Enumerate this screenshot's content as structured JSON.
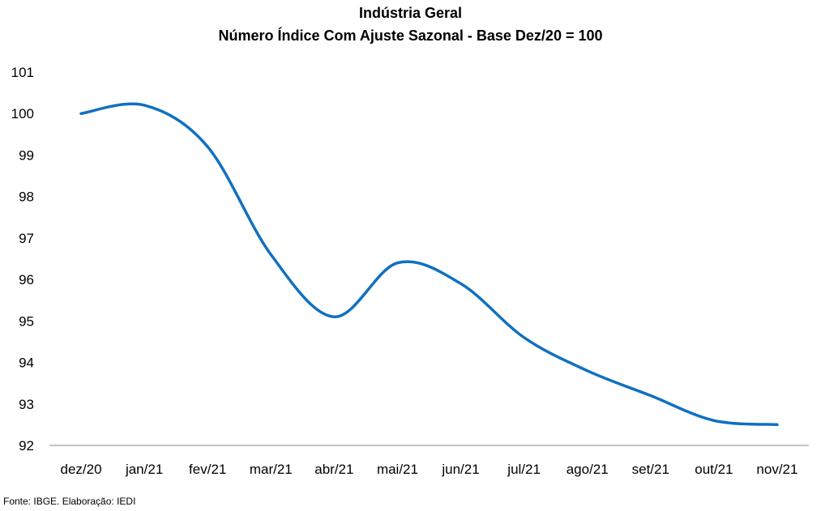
{
  "chart_data": {
    "type": "line",
    "title": "Indústria Geral",
    "subtitle": "Número Índice Com Ajuste Sazonal - Base Dez/20 = 100",
    "categories": [
      "dez/20",
      "jan/21",
      "fev/21",
      "mar/21",
      "abr/21",
      "mai/21",
      "jun/21",
      "jul/21",
      "ago/21",
      "set/21",
      "out/21",
      "nov/21"
    ],
    "series": [
      {
        "values": [
          100.0,
          100.2,
          99.2,
          96.6,
          95.1,
          96.4,
          95.9,
          94.6,
          93.8,
          93.2,
          92.6,
          92.5
        ]
      }
    ],
    "ylim": [
      92,
      101
    ],
    "yticks": [
      92,
      93,
      94,
      95,
      96,
      97,
      98,
      99,
      100,
      101
    ],
    "grid": false,
    "legend": "none",
    "line_color": "#1170c0"
  },
  "source": "Fonte: IBGE. Elaboração: IEDI"
}
